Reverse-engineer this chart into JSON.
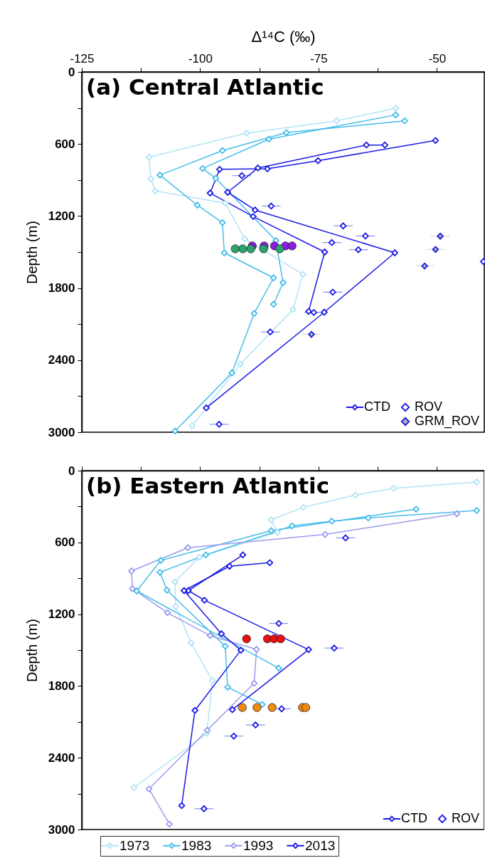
{
  "chart_data": [
    {
      "type": "line",
      "title": "(a) Central Atlantic",
      "xlabel": "Δ¹⁴C (‰)",
      "ylabel": "Depth (m)",
      "xlim": [
        -125,
        -40
      ],
      "xticks": [
        -125,
        {
          "value": -112.5,
          "label": null
        },
        -100,
        {
          "value": -87.5,
          "label": null
        },
        -75,
        {
          "value": -62.5,
          "label": null
        },
        -50
      ],
      "ylim": [
        3000,
        0
      ],
      "yticks": [
        0,
        {
          "value": 300,
          "label": null
        },
        600,
        {
          "value": 900,
          "label": null
        },
        1200,
        {
          "value": 1500,
          "label": null
        },
        1800,
        {
          "value": 2100,
          "label": null
        },
        2400,
        {
          "value": 2700,
          "label": null
        },
        3000
      ],
      "legend": "bottom right",
      "marker": "diamond",
      "series": [
        {
          "type": "line",
          "color": "#b3e3f7",
          "x": [
            -58.7,
            -71.2,
            -90.2,
            -110.8,
            -110.4,
            -109.5,
            -94.7,
            -90.6,
            -78.3,
            -80.4,
            -91.5,
            -101.7
          ],
          "values": [
            303,
            407,
            510,
            710,
            892,
            991,
            1092,
            1390,
            1686,
            1978,
            2433,
            2947
          ]
        },
        {
          "type": "line",
          "color": "#45bde8",
          "x": [
            -58.7,
            -85.5,
            -99.5,
            -96.7,
            -84.0,
            -82.5,
            -84.5
          ],
          "values": [
            358,
            560,
            804,
            886,
            1405,
            1755,
            1935
          ]
        },
        {
          "type": "line",
          "color": "#45bde8",
          "x": [
            -56.8,
            -81.8,
            -95.3,
            -108.5,
            -100.6,
            -95.3,
            -94.9,
            -84.5,
            -88.6,
            -93.3,
            -105.3
          ],
          "values": [
            407,
            506,
            655,
            859,
            1110,
            1255,
            1506,
            1715,
            2011,
            2506,
            2990
          ]
        },
        {
          "name": "CTD",
          "color": "#1a1ae6",
          "x": [
            -50.3,
            -75.1,
            -85.8,
            -95.9,
            -97.9,
            -88.8,
            -73.7,
            -77.1
          ],
          "values": [
            571,
            739,
            807,
            811,
            1009,
            1204,
            1500,
            1994
          ]
        },
        {
          "type": "line",
          "color": "#1a1ae6",
          "x": [
            -61.0,
            -64.9,
            -87.8,
            -94.2,
            -88.4,
            -58.9,
            -73.8,
            -98.7
          ],
          "values": [
            609,
            609,
            800,
            1002,
            1150,
            1506,
            2001,
            2798
          ]
        },
        {
          "type": "scatter",
          "name": "ROV",
          "marker": "diamond",
          "color": "#1a1ae6",
          "x": [
            -91.2,
            -85.0,
            -69.8,
            -65.1,
            -72.2,
            -66.6,
            -40.2,
            -72.0,
            -76.0,
            -85.2,
            -96.0
          ],
          "values": [
            864,
            1117,
            1282,
            1366,
            1421,
            1480,
            1579,
            1834,
            2003,
            2165,
            2934
          ],
          "xerrors": [
            2,
            2,
            2,
            2,
            2,
            2,
            null,
            2,
            2,
            2,
            2
          ]
        },
        {
          "type": "scatter",
          "name": "GRM_ROV",
          "marker": "diamond",
          "color": "#b4b4b4",
          "x": [
            -49.3,
            -50.3,
            -52.6,
            -76.5
          ],
          "values": [
            1368,
            1478,
            1616,
            2185
          ],
          "xerrors": [
            2,
            2,
            2,
            2
          ]
        },
        {
          "type": "scatter",
          "marker": "circle",
          "color": "#8b1be6",
          "x": [
            -89.0,
            -86.5,
            -84.3,
            -82.0,
            -80.6
          ],
          "values": [
            1449,
            1449,
            1449,
            1449,
            1449
          ]
        },
        {
          "type": "scatter",
          "marker": "circle",
          "color": "#2ca56d",
          "x": [
            -92.6,
            -91.0,
            -89.3,
            -86.6,
            -83.2
          ],
          "values": [
            1473,
            1473,
            1473,
            1473,
            1473
          ]
        }
      ]
    },
    {
      "type": "line",
      "title": "(b) Eastern Atlantic",
      "ylabel": "Depth (m)",
      "xlim": [
        -125,
        -40
      ],
      "xticks": [
        -125,
        {
          "value": -112.5,
          "label": null
        },
        -100,
        {
          "value": -87.5,
          "label": null
        },
        -75,
        {
          "value": -62.5,
          "label": null
        },
        -50
      ],
      "ylim": [
        3000,
        0
      ],
      "yticks": [
        0,
        {
          "value": 300,
          "label": null
        },
        600,
        {
          "value": 900,
          "label": null
        },
        1200,
        {
          "value": 1500,
          "label": null
        },
        1800,
        {
          "value": 2100,
          "label": null
        },
        2400,
        {
          "value": 2700,
          "label": null
        },
        3000
      ],
      "tick_labels": "y",
      "legend": "bottom right",
      "marker": "diamond",
      "series": [
        {
          "type": "line",
          "name": "1973",
          "color": "#b3e3f7",
          "x": [
            -41.6,
            -59.1,
            -67.2,
            -78.2,
            -85.0,
            -83.7,
            -100.2,
            -105.3,
            -105.2,
            -101.9,
            -97.4,
            -98.6,
            -114.0
          ],
          "values": [
            95,
            147,
            204,
            306,
            411,
            515,
            724,
            930,
            1134,
            1439,
            1755,
            2197,
            2649
          ]
        },
        {
          "type": "line",
          "name": "1983",
          "color": "#45bde8",
          "x": [
            -41.6,
            -64.5,
            -72.2,
            -80.6,
            -98.8,
            -108.5,
            -107.0,
            -94.7,
            -94.2,
            -86.9
          ],
          "values": [
            333,
            395,
            422,
            462,
            704,
            850,
            999,
            1468,
            1810,
            1954
          ]
        },
        {
          "type": "line",
          "color": "#45bde8",
          "x": [
            -54.4,
            -85.0,
            -108.3,
            -113.4,
            -83.4
          ],
          "values": [
            322,
            502,
            750,
            1006,
            1651
          ]
        },
        {
          "type": "line",
          "name": "1993",
          "color": "#9b9bef",
          "x": [
            -45.8,
            -73.6,
            -102.6,
            -114.5,
            -114.3,
            -106.9,
            -97.9,
            -88.1,
            -88.6,
            -98.5,
            -110.8,
            -106.5
          ],
          "values": [
            360,
            533,
            644,
            839,
            986,
            1188,
            1379,
            1494,
            1777,
            2170,
            2661,
            2954
          ]
        },
        {
          "type": "line",
          "name": "2013",
          "color": "#1a1ae6",
          "x": [
            -91.0,
            -102.5,
            -99.1,
            -77.1,
            -93.2
          ],
          "values": [
            704,
            1003,
            1083,
            1496,
            1998
          ]
        },
        {
          "name": "CTD",
          "color": "#1a1ae6",
          "x": [
            -85.3,
            -93.8,
            -103.4,
            -95.5,
            -91.4,
            -101.1,
            -103.9
          ],
          "values": [
            770,
            799,
            1003,
            1364,
            1501,
            2004,
            2800
          ]
        },
        {
          "type": "scatter",
          "name": "ROV",
          "marker": "diamond",
          "color": "#1a1ae6",
          "x": [
            -69.3,
            -83.4,
            -71.7,
            -82.8,
            -88.3,
            -92.9,
            -99.2
          ],
          "values": [
            562,
            1277,
            1483,
            1991,
            2126,
            2219,
            2826
          ],
          "xerrors": [
            2,
            2,
            2,
            2,
            2,
            2,
            2
          ]
        },
        {
          "type": "scatter",
          "marker": "circle",
          "color": "#e81010",
          "x": [
            -90.2,
            -85.8,
            -84.4,
            -83.0
          ],
          "values": [
            1406,
            1406,
            1406,
            1406
          ]
        },
        {
          "type": "scatter",
          "marker": "circle",
          "color": "#f08a10",
          "x": [
            -91.1,
            -88.0,
            -84.8,
            -78.4,
            -77.7
          ],
          "values": [
            1980,
            1980,
            1980,
            1980,
            1980
          ]
        }
      ]
    }
  ]
}
